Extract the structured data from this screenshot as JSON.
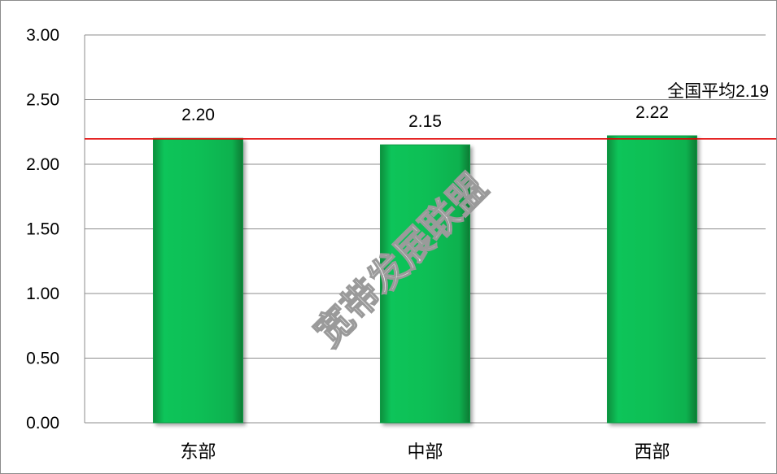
{
  "chart_data": {
    "type": "bar",
    "categories": [
      "东部",
      "中部",
      "西部"
    ],
    "values": [
      2.2,
      2.15,
      2.22
    ],
    "value_labels": [
      "2.20",
      "2.15",
      "2.22"
    ],
    "title": "",
    "xlabel": "",
    "ylabel": "",
    "ylim": [
      0,
      3.0
    ],
    "y_ticks": [
      "0.00",
      "0.50",
      "1.00",
      "1.50",
      "2.00",
      "2.50",
      "3.00"
    ],
    "grid": true,
    "legend": "none",
    "bar_color": "#0fbf55",
    "reference_line": {
      "label": "全国平均",
      "value": 2.19,
      "value_label": "2.19",
      "color": "#e00000"
    }
  },
  "watermark": {
    "text": "宽带发展联盟"
  }
}
